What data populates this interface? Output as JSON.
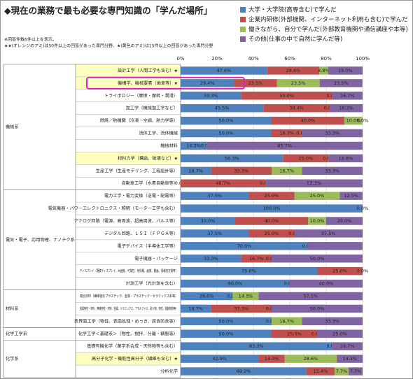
{
  "chart_data": {
    "type": "stacked-bar-horizontal",
    "title": "◆現在の業務で最も必要な専門知識の「学んだ場所」",
    "notes": [
      "※回答件数6件以上を表示。",
      "★★(オレンジのアミ)は50件以上の回答があった専門分野、★(黄色のアミ)は15件以上の回答があった専門分野"
    ],
    "groups": [
      {
        "name": "機械系",
        "categories": [
          "設計工学（人間工学も含む）★",
          "機構学、機械要素（歯車等）★",
          "トライボロジー（摩擦・摩耗・潤滑）",
          "加工学（機械加工学など）",
          "燃焼／熱機関（冷凍・空調、熱力学等）",
          "流体工学、流体機械",
          "機械材料",
          "材料力学（構造、破壊など）★",
          "生産工学（生産モデリング、工程設計等）",
          "自動車工学（水素自動車等）"
        ]
      },
      {
        "name": "電気・電子、応用物理、ナノテク系",
        "categories": [
          "電力工学・電力変換（送電・配電等）",
          "電気機器・パワーエレクトロニクス・照明（モーター工学も含む）",
          "アナログ回路（電源、高周波、超高周波、パルス等）",
          "デジタル回路、ＬＳＩ（ＦＰＧＡ等）",
          "電子デバイス（半導体工学等）",
          "電子機器・パッケージ",
          "ディスプレイ（薄膜ディスプレイ、大画機、可撓性、色情報、画像、動画、情報安定電等）",
          "計測工学（光計測を含む）"
        ]
      },
      {
        "name": "材料系",
        "categories": [
          "複合材料（繊維強化プラスチック、金属・プラスチック・セラミックス系等）",
          "金属物性・材料、無機物性・材料（金属、セラミックス、アモルファス、耐火物、物性、超韻物質等）",
          "表界面工学（物性、表面処理・めっき、腐食防食等）"
        ]
      },
      {
        "name": "化学工学系",
        "categories": [
          "化学工学＜基礎系＞（物性、撹拌、分離・精製等）"
        ]
      },
      {
        "name": "化学系",
        "categories": [
          "基礎有機化学（薬学系合成・天然物等も含む）",
          "高分子化学・機能性高分子（繊維も含む）★",
          "分析化学"
        ]
      }
    ],
    "highlight_color": "#ffffc0",
    "xlim": [
      0,
      100
    ],
    "xticks": [
      {
        "value": 0,
        "label": "0%"
      },
      {
        "value": 20,
        "label": "20%"
      },
      {
        "value": 40,
        "label": "40%"
      },
      {
        "value": 60,
        "label": "60%"
      },
      {
        "value": 80,
        "label": "80%"
      },
      {
        "value": 100,
        "label": "100%"
      }
    ],
    "grid": true,
    "series": [
      {
        "name": "大学・大学院(高専含む)で学んだ",
        "color": "#4f81bd",
        "values": [
          47.6,
          29.4,
          33.3,
          45.5,
          50.0,
          50.0,
          14.3,
          56.3,
          16.7,
          0.0,
          37.5,
          100.0,
          30.0,
          37.5,
          70.0,
          33.3,
          75.0,
          60.0,
          28.6,
          16.7,
          50.0,
          50.0,
          83.3,
          42.9,
          69.2
        ],
        "value_labels": [
          "47.6%",
          "29.4%",
          "33.3%",
          "45.5%",
          "50.0%",
          "50.0%",
          "14.3%",
          "56.3%",
          "16.7%",
          "0.0%",
          "37.5%",
          "100.0%",
          "30.0%",
          "37.5%",
          "70.0%",
          "33.3%",
          "75.0%",
          "60.0%",
          "28.6%",
          "16.7%",
          "50.0%",
          "50.0%",
          "83.3%",
          "42.9%",
          "69.2%"
        ]
      },
      {
        "name": "企業内研修(外部機関、インターネット利用も含む)で学んだ",
        "color": "#c0504d",
        "values": [
          28.6,
          23.5,
          50.0,
          36.4,
          40.0,
          16.7,
          0.0,
          25.0,
          33.3,
          46.7,
          25.0,
          0.0,
          40.0,
          25.0,
          0.0,
          16.7,
          25.0,
          0.0,
          0.0,
          33.3,
          0.0,
          25.0,
          0.0,
          14.3,
          15.4
        ],
        "value_labels": [
          "28.6%",
          "23.5%",
          "50.0%",
          "36.4%",
          "40.0%",
          "16.7%",
          "0.0%",
          "25.0%",
          "33.3%",
          "46.7%",
          "25.0%",
          null,
          "40.0%",
          "25.0%",
          null,
          "16.7%",
          "25.0%",
          null,
          "0.0%",
          "33.3%",
          "0.0%",
          "25.0%",
          null,
          "14.3%",
          "15.4%"
        ]
      },
      {
        "name": "働きながら、自分で学んだ(外部教育機関や通信講座や本等)",
        "color": "#9bbb59",
        "values": [
          4.8,
          23.5,
          0.0,
          0.0,
          10.0,
          0.0,
          0.0,
          0.0,
          16.7,
          0.0,
          25.0,
          0.0,
          10.0,
          0.0,
          0.0,
          0.0,
          0.0,
          0.0,
          14.3,
          0.0,
          16.7,
          0.0,
          0.0,
          28.6,
          7.7
        ],
        "value_labels": [
          "4.8%",
          "23.5%",
          "0.0%",
          "0.0%",
          "10.0%",
          "0.0%",
          null,
          "0.0%",
          "16.7%",
          "0.0%",
          "25.0%",
          null,
          "10.0%",
          "0.0%",
          "0.0%",
          "0.0%",
          null,
          "0.0%",
          "14.3%",
          "0.0%",
          "16.7%",
          "0.0%",
          "0.0%",
          "28.6%",
          "7.7%"
        ]
      },
      {
        "name": "その他(仕事の中で自然に学んだ等)",
        "color": "#8064a2",
        "values": [
          19.0,
          23.5,
          16.7,
          18.2,
          0.0,
          33.3,
          85.7,
          18.8,
          33.3,
          53.3,
          12.5,
          0.0,
          20.0,
          37.5,
          30.0,
          50.0,
          0.0,
          40.0,
          57.1,
          50.0,
          33.3,
          25.0,
          16.7,
          14.3,
          7.7
        ],
        "value_labels": [
          "19.0%",
          "23.5%",
          "16.7%",
          "18.2%",
          "0.0%",
          "33.3%",
          "85.7%",
          "18.8%",
          "33.3%",
          "53.3%",
          "12.5%",
          "0.0%",
          "20.0%",
          "37.5%",
          null,
          "50.0%",
          "0.0%",
          "40.0%",
          "57.1%",
          "50.0%",
          "33.3%",
          "25.0%",
          "16.7%",
          "14.3%",
          "7.7%"
        ]
      }
    ]
  }
}
